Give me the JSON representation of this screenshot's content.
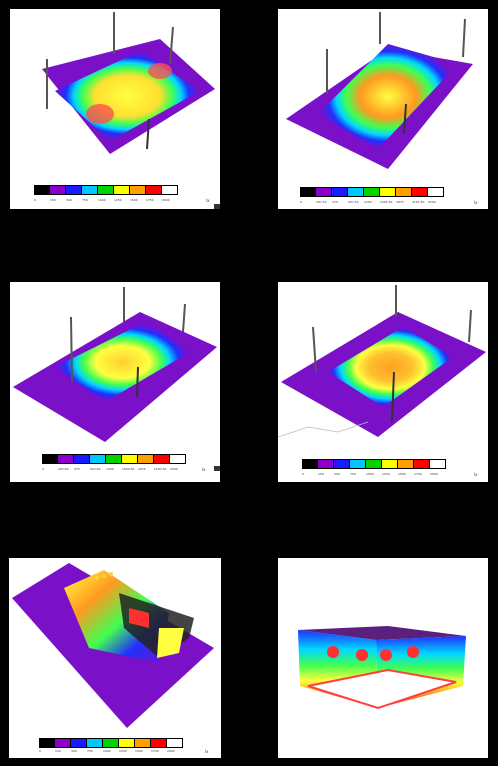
{
  "panels": [
    {
      "id": "p1",
      "scale_ticks": [
        "0",
        "150",
        "300",
        "750",
        "1000",
        "1250",
        "1500",
        "1750",
        "2000"
      ],
      "unit": "lx"
    },
    {
      "id": "p2",
      "scale_ticks": [
        "0",
        "187.50",
        "375",
        "937.50",
        "1250",
        "1562.50",
        "1875",
        "2187.50",
        "2500"
      ],
      "unit": "lx"
    },
    {
      "id": "p3",
      "scale_ticks": [
        "0",
        "187.50",
        "375",
        "937.50",
        "1250",
        "1562.50",
        "1875",
        "2187.50",
        "2500"
      ],
      "unit": "lx"
    },
    {
      "id": "p4",
      "scale_ticks": [
        "0",
        "150",
        "300",
        "750",
        "1000",
        "1250",
        "1500",
        "1750",
        "2000"
      ],
      "unit": "lx"
    },
    {
      "id": "p5",
      "scale_ticks": [
        "0",
        "150",
        "300",
        "750",
        "1000",
        "1250",
        "1500",
        "1750",
        "2000"
      ],
      "unit": "lx"
    },
    {
      "id": "p6"
    }
  ],
  "scale_colors": [
    "#000000",
    "#8a00c8",
    "#1a1aff",
    "#00c8ff",
    "#00d200",
    "#ffff00",
    "#ffa000",
    "#ff0000",
    "#ffffff"
  ],
  "heat_colors": {
    "outer": "#7a10c8",
    "ring1": "#2030ff",
    "ring2": "#00d8ff",
    "ring3": "#40ff40",
    "ring4": "#ffff30",
    "core": "#ff9a20",
    "hot": "#ff2a2a",
    "pole": "#c8a020"
  }
}
